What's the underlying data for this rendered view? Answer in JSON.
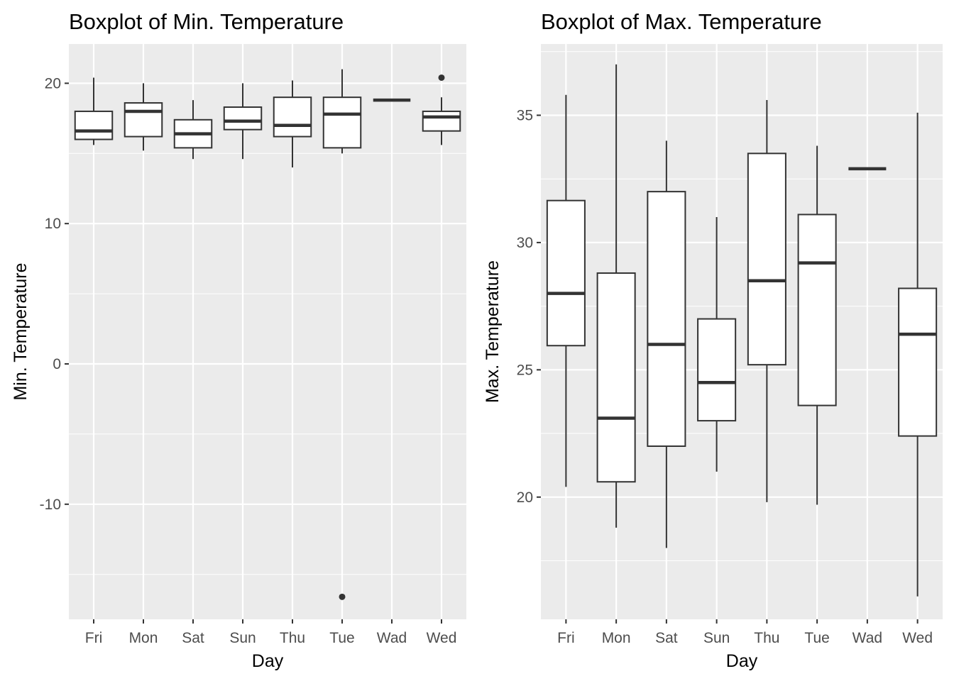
{
  "chart_data": [
    {
      "type": "boxplot",
      "title": "Boxplot of Min. Temperature",
      "xlabel": "Day",
      "ylabel": "Min. Temperature",
      "ylim": [
        -18.2,
        22.8
      ],
      "yticks": [
        -10,
        0,
        10,
        20
      ],
      "categories": [
        "Fri",
        "Mon",
        "Sat",
        "Sun",
        "Thu",
        "Tue",
        "Wad",
        "Wed"
      ],
      "boxes": [
        {
          "min": 15.6,
          "q1": 16.0,
          "median": 16.6,
          "q3": 18.0,
          "max": 20.4,
          "outliers": []
        },
        {
          "min": 15.2,
          "q1": 16.2,
          "median": 18.0,
          "q3": 18.6,
          "max": 20.0,
          "outliers": []
        },
        {
          "min": 14.6,
          "q1": 15.4,
          "median": 16.4,
          "q3": 17.4,
          "max": 18.8,
          "outliers": []
        },
        {
          "min": 14.6,
          "q1": 16.7,
          "median": 17.3,
          "q3": 18.3,
          "max": 20.0,
          "outliers": []
        },
        {
          "min": 14.0,
          "q1": 16.2,
          "median": 17.0,
          "q3": 19.0,
          "max": 20.2,
          "outliers": []
        },
        {
          "min": 15.0,
          "q1": 15.4,
          "median": 17.8,
          "q3": 19.0,
          "max": 21.0,
          "outliers": [
            -16.6
          ]
        },
        {
          "min": 18.8,
          "q1": 18.8,
          "median": 18.8,
          "q3": 18.8,
          "max": 18.8,
          "outliers": []
        },
        {
          "min": 15.6,
          "q1": 16.6,
          "median": 17.6,
          "q3": 18.0,
          "max": 19.0,
          "outliers": [
            20.4
          ]
        }
      ],
      "grid": true,
      "legend": "none"
    },
    {
      "type": "boxplot",
      "title": "Boxplot of Max. Temperature",
      "xlabel": "Day",
      "ylabel": "Max. Temperature",
      "ylim": [
        15.2,
        37.8
      ],
      "yticks": [
        20,
        25,
        30,
        35
      ],
      "categories": [
        "Fri",
        "Mon",
        "Sat",
        "Sun",
        "Thu",
        "Tue",
        "Wad",
        "Wed"
      ],
      "boxes": [
        {
          "min": 20.4,
          "q1": 25.95,
          "median": 28.0,
          "q3": 31.65,
          "max": 35.8,
          "outliers": []
        },
        {
          "min": 18.8,
          "q1": 20.6,
          "median": 23.1,
          "q3": 28.8,
          "max": 37.0,
          "outliers": []
        },
        {
          "min": 18.0,
          "q1": 22.0,
          "median": 26.0,
          "q3": 32.0,
          "max": 34.0,
          "outliers": []
        },
        {
          "min": 21.0,
          "q1": 23.0,
          "median": 24.5,
          "q3": 27.0,
          "max": 31.0,
          "outliers": []
        },
        {
          "min": 19.8,
          "q1": 25.2,
          "median": 28.5,
          "q3": 33.5,
          "max": 35.6,
          "outliers": []
        },
        {
          "min": 19.7,
          "q1": 23.6,
          "median": 29.2,
          "q3": 31.1,
          "max": 33.8,
          "outliers": []
        },
        {
          "min": 32.9,
          "q1": 32.9,
          "median": 32.9,
          "q3": 32.9,
          "max": 32.9,
          "outliers": []
        },
        {
          "min": 16.1,
          "q1": 22.4,
          "median": 26.4,
          "q3": 28.2,
          "max": 35.1,
          "outliers": []
        }
      ],
      "grid": true,
      "legend": "none"
    }
  ],
  "colors": {
    "panel_background": "#ebebeb",
    "grid_major": "#ffffff",
    "box_fill": "#ffffff",
    "box_stroke": "#333333",
    "tick_text": "#4d4d4d",
    "title_text": "#000000"
  }
}
